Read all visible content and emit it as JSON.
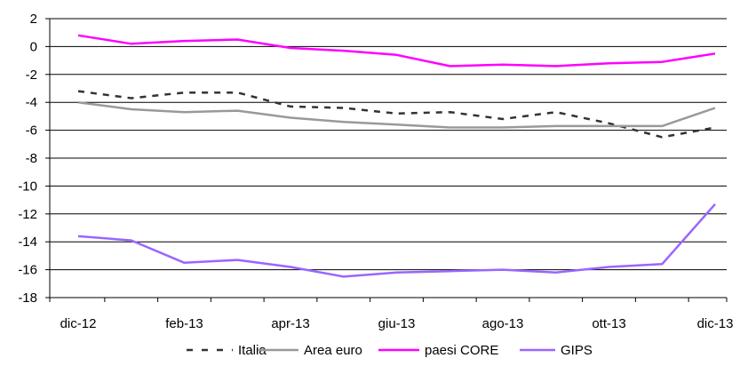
{
  "chart_data": {
    "type": "line",
    "title": "",
    "xlabel": "",
    "ylabel": "",
    "ylim": [
      -18,
      2
    ],
    "yticks": [
      2,
      0,
      -2,
      -4,
      -6,
      -8,
      -10,
      -12,
      -14,
      -16,
      -18
    ],
    "grid": "horizontal",
    "legend_position": "bottom",
    "x": [
      "dic-12",
      "gen-13",
      "feb-13",
      "mar-13",
      "apr-13",
      "mag-13",
      "giu-13",
      "lug-13",
      "ago-13",
      "set-13",
      "ott-13",
      "nov-13",
      "dic-13"
    ],
    "xtick_labels": [
      "dic-12",
      "feb-13",
      "apr-13",
      "giu-13",
      "ago-13",
      "ott-13",
      "dic-13"
    ],
    "series": [
      {
        "name": "Italia",
        "color": "#333333",
        "dash": "dashed",
        "values": [
          -3.2,
          -3.7,
          -3.3,
          -3.3,
          -4.3,
          -4.4,
          -4.8,
          -4.7,
          -5.2,
          -4.7,
          -5.5,
          -6.5,
          -5.8
        ]
      },
      {
        "name": "Area euro",
        "color": "#999999",
        "dash": "solid",
        "values": [
          -4.0,
          -4.5,
          -4.7,
          -4.6,
          -5.1,
          -5.4,
          -5.6,
          -5.8,
          -5.8,
          -5.7,
          -5.7,
          -5.7,
          -4.4
        ]
      },
      {
        "name": "paesi CORE",
        "color": "#ff00ff",
        "dash": "solid",
        "values": [
          0.8,
          0.2,
          0.4,
          0.5,
          -0.1,
          -0.3,
          -0.6,
          -1.4,
          -1.3,
          -1.4,
          -1.2,
          -1.1,
          -0.5
        ]
      },
      {
        "name": "GIPS",
        "color": "#9966ff",
        "dash": "solid",
        "values": [
          -13.6,
          -13.9,
          -15.5,
          -15.3,
          -15.8,
          -16.5,
          -16.2,
          -16.1,
          -16.0,
          -16.2,
          -15.8,
          -15.6,
          -11.3
        ]
      }
    ]
  }
}
